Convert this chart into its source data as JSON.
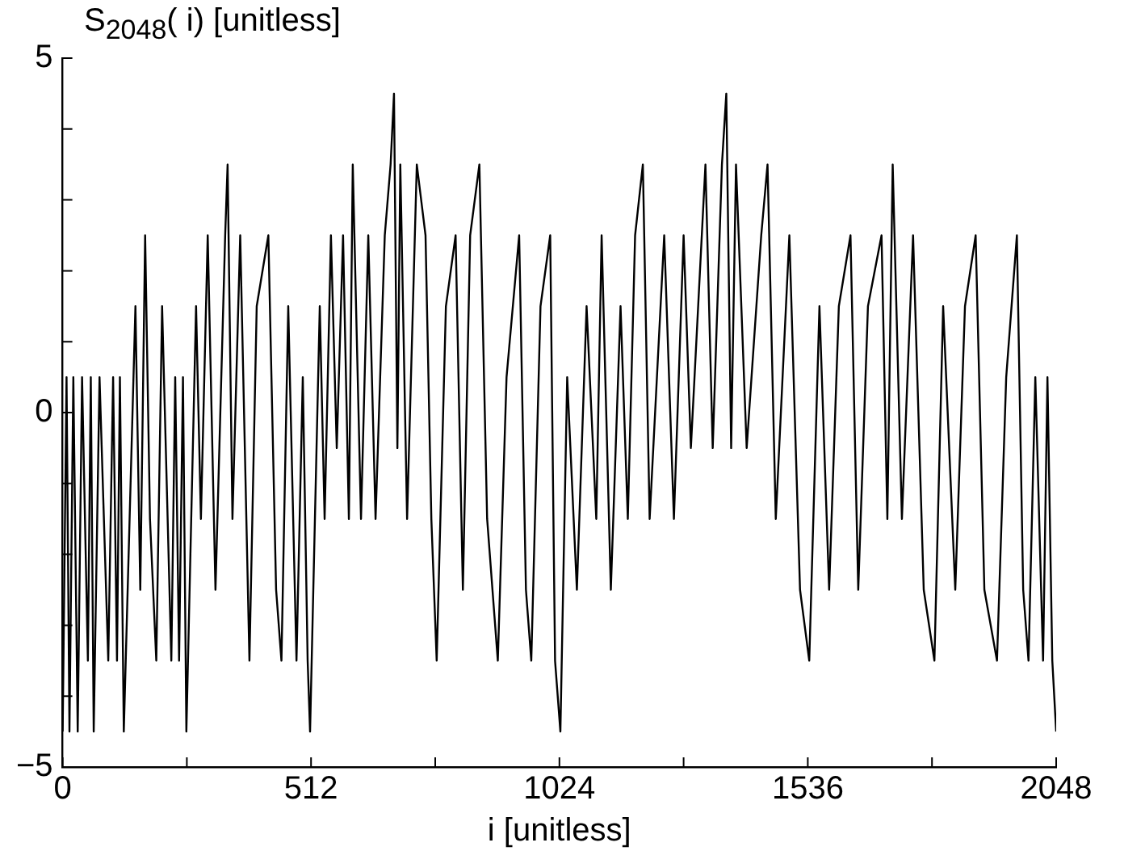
{
  "chart_data": {
    "type": "line",
    "xlabel": "i [unitless]",
    "ylabel": "S$_{2048}$( i) [unitless]",
    "xlim": [
      0,
      2048
    ],
    "xticks": [
      0,
      {
        "value": 256,
        "label": null
      },
      512,
      {
        "value": 768,
        "label": null
      },
      1024,
      {
        "value": 1280,
        "label": null
      },
      1536,
      {
        "value": 1792,
        "label": null
      },
      2048
    ],
    "ylim": [
      -5,
      5
    ],
    "yticks": [
      {
        "value": -5,
        "label": "−5"
      },
      {
        "value": -4,
        "label": null
      },
      {
        "value": -3,
        "label": null
      },
      {
        "value": -2,
        "label": null
      },
      {
        "value": -1,
        "label": null
      },
      0,
      {
        "value": 1,
        "label": null
      },
      {
        "value": 2,
        "label": null
      },
      {
        "value": 3,
        "label": null
      },
      {
        "value": 4,
        "label": null
      },
      5
    ],
    "grid": false,
    "legend": false,
    "marker": "none",
    "line_style": "solid",
    "series": [
      {
        "color": "#000000",
        "x": [
          0,
          8,
          14,
          22,
          31,
          40,
          52,
          58,
          64,
          76,
          94,
          104,
          112,
          118,
          126,
          150,
          160,
          170,
          180,
          193,
          205,
          224,
          232,
          240,
          248,
          255,
          275,
          285,
          299,
          315,
          335,
          340,
          350,
          366,
          385,
          400,
          424,
          440,
          451,
          465,
          482,
          495,
          505,
          510,
          530,
          540,
          553,
          565,
          578,
          590,
          598,
          615,
          630,
          645,
          664,
          676,
          683,
          690,
          696,
          710,
          730,
          748,
          760,
          771,
          790,
          810,
          825,
          840,
          859,
          875,
          897,
          915,
          941,
          955,
          966,
          985,
          1005,
          1015,
          1026,
          1040,
          1060,
          1080,
          1100,
          1111,
          1130,
          1150,
          1165,
          1180,
          1196,
          1210,
          1240,
          1260,
          1280,
          1295,
          1325,
          1340,
          1359,
          1368,
          1378,
          1388,
          1410,
          1440,
          1453,
          1470,
          1498,
          1520,
          1539,
          1560,
          1580,
          1600,
          1624,
          1640,
          1660,
          1688,
          1700,
          1711,
          1730,
          1753,
          1775,
          1797,
          1815,
          1840,
          1860,
          1882,
          1900,
          1926,
          1945,
          1967,
          1980,
          1991,
          2005,
          2021,
          2030,
          2040,
          2048
        ],
        "values": [
          -4.5,
          0.5,
          -4.5,
          0.5,
          -4.5,
          0.5,
          -3.5,
          0.5,
          -4.5,
          0.5,
          -3.5,
          0.5,
          -3.5,
          0.5,
          -4.5,
          1.5,
          -2.5,
          2.5,
          -1.5,
          -3.5,
          1.5,
          -3.5,
          0.5,
          -3.5,
          0.5,
          -4.5,
          1.5,
          -1.5,
          2.5,
          -2.5,
          2.5,
          3.5,
          -1.5,
          2.5,
          -3.5,
          1.5,
          2.5,
          -2.5,
          -3.5,
          1.5,
          -3.5,
          0.5,
          -3.5,
          -4.5,
          1.5,
          -1.5,
          2.5,
          -0.5,
          2.5,
          -1.5,
          3.5,
          -1.5,
          2.5,
          -1.5,
          2.5,
          3.5,
          4.5,
          -0.5,
          3.5,
          -1.5,
          3.5,
          2.5,
          -1.5,
          -3.5,
          1.5,
          2.5,
          -2.5,
          2.5,
          3.5,
          -1.5,
          -3.5,
          0.5,
          2.5,
          -2.5,
          -3.5,
          1.5,
          2.5,
          -3.5,
          -4.5,
          0.5,
          -2.5,
          1.5,
          -1.5,
          2.5,
          -2.5,
          1.5,
          -1.5,
          2.5,
          3.5,
          -1.5,
          2.5,
          -1.5,
          2.5,
          -0.5,
          3.5,
          -0.5,
          3.5,
          4.5,
          -0.5,
          3.5,
          -0.5,
          2.5,
          3.5,
          -1.5,
          2.5,
          -2.5,
          -3.5,
          1.5,
          -2.5,
          1.5,
          2.5,
          -2.5,
          1.5,
          2.5,
          -1.5,
          3.5,
          -1.5,
          2.5,
          -2.5,
          -3.5,
          1.5,
          -2.5,
          1.5,
          2.5,
          -2.5,
          -3.5,
          0.5,
          2.5,
          -2.5,
          -3.5,
          0.5,
          -3.5,
          0.5,
          -3.5,
          -4.5
        ]
      }
    ]
  }
}
